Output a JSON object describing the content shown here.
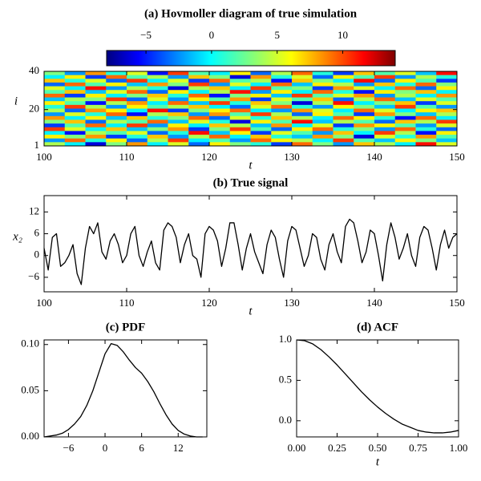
{
  "chart_data": [
    {
      "type": "heatmap",
      "title": "(a) Hovmoller diagram of true simulation",
      "xlabel": "t",
      "ylabel": "i",
      "xlim": [
        100,
        150
      ],
      "xticks": [
        100,
        110,
        120,
        130,
        140,
        150
      ],
      "ylim": [
        1,
        40
      ],
      "yticks": [
        1,
        20,
        40
      ],
      "colorbar": {
        "lim": [
          -8,
          14
        ],
        "ticks": [
          {
            "value": -5,
            "label": "−5"
          },
          0,
          5,
          10
        ]
      },
      "z": [
        [
          3,
          -2,
          8,
          1,
          5,
          -5,
          10,
          2,
          0,
          6,
          -3,
          4,
          9,
          1,
          -4,
          7,
          2,
          5,
          -1,
          11
        ],
        [
          0,
          6,
          -4,
          9,
          2,
          4,
          -2,
          7,
          3,
          -6,
          8,
          1,
          5,
          -3,
          6,
          2,
          10,
          -2,
          4,
          1
        ],
        [
          7,
          1,
          5,
          -3,
          10,
          0,
          5,
          -4,
          9,
          2,
          4,
          -5,
          7,
          3,
          0,
          11,
          -3,
          6,
          2,
          -4
        ],
        [
          -3,
          9,
          2,
          6,
          -1,
          8,
          3,
          10,
          -2,
          5,
          0,
          9,
          -1,
          6,
          4,
          -2,
          7,
          1,
          9,
          3
        ],
        [
          5,
          0,
          11,
          -2,
          4,
          1,
          -6,
          4,
          7,
          0,
          10,
          2,
          3,
          -4,
          8,
          5,
          0,
          9,
          -3,
          6
        ],
        [
          2,
          7,
          -1,
          5,
          9,
          -3,
          6,
          0,
          4,
          11,
          -2,
          6,
          0,
          9,
          1,
          -5,
          6,
          3,
          7,
          0
        ],
        [
          9,
          -4,
          6,
          0,
          3,
          7,
          1,
          9,
          -5,
          3,
          6,
          -1,
          10,
          2,
          5,
          8,
          -2,
          4,
          0,
          8
        ],
        [
          -1,
          4,
          3,
          10,
          -3,
          5,
          -2,
          6,
          2,
          8,
          -4,
          5,
          2,
          7,
          -3,
          4,
          9,
          -1,
          5,
          2
        ],
        [
          6,
          2,
          -5,
          4,
          8,
          0,
          9,
          -1,
          10,
          1,
          7,
          3,
          -6,
          4,
          11,
          0,
          3,
          7,
          -4,
          5
        ],
        [
          1,
          10,
          4,
          -2,
          6,
          2,
          4,
          7,
          0,
          -3,
          5,
          9,
          1,
          -2,
          6,
          3,
          -1,
          10,
          2,
          -2
        ],
        [
          4,
          -3,
          8,
          6,
          0,
          11,
          -4,
          3,
          6,
          9,
          0,
          -2,
          8,
          5,
          0,
          9,
          5,
          0,
          6,
          7
        ],
        [
          -2,
          5,
          1,
          9,
          -5,
          4,
          7,
          -2,
          8,
          2,
          10,
          4,
          -3,
          6,
          2,
          -4,
          8,
          3,
          -1,
          4
        ],
        [
          8,
          0,
          6,
          -1,
          7,
          1,
          3,
          9,
          -3,
          5,
          1,
          7,
          4,
          0,
          9,
          6,
          1,
          -5,
          9,
          0
        ],
        [
          3,
          7,
          -3,
          4,
          2,
          9,
          -1,
          5,
          1,
          -6,
          6,
          2,
          11,
          -1,
          4,
          2,
          -3,
          7,
          4,
          10
        ],
        [
          -4,
          2,
          9,
          0,
          10,
          -2,
          6,
          0,
          7,
          4,
          -1,
          8,
          0,
          5,
          -4,
          8,
          6,
          2,
          -2,
          5
        ],
        [
          10,
          5,
          0,
          7,
          -1,
          3,
          8,
          -4,
          3,
          10,
          2,
          -3,
          6,
          9,
          1,
          3,
          -2,
          9,
          1,
          -3
        ],
        [
          0,
          -5,
          4,
          2,
          5,
          -3,
          1,
          11,
          -1,
          6,
          -4,
          5,
          2,
          -2,
          7,
          0,
          10,
          4,
          -5,
          6
        ],
        [
          6,
          3,
          8,
          -4,
          1,
          7,
          -2,
          4,
          9,
          0,
          7,
          1,
          -1,
          8,
          3,
          -6,
          5,
          1,
          8,
          2
        ],
        [
          -2,
          9,
          1,
          6,
          -3,
          4,
          10,
          0,
          2,
          -2,
          9,
          6,
          4,
          0,
          10,
          2,
          -1,
          6,
          3,
          -1
        ],
        [
          4,
          0,
          -6,
          3,
          8,
          0,
          5,
          -3,
          6,
          3,
          1,
          -4,
          9,
          3,
          -2,
          7,
          4,
          0,
          11,
          5
        ]
      ]
    },
    {
      "type": "line",
      "title": "(b) True signal",
      "xlabel": "t",
      "ylabel": "x₂",
      "color": "#000000",
      "xlim": [
        100,
        150
      ],
      "xticks": [
        100,
        110,
        120,
        130,
        140,
        150
      ],
      "ylim": [
        -10,
        16.5
      ],
      "yticks": [
        {
          "value": -6,
          "label": "−6"
        },
        0,
        6,
        12
      ],
      "x": [
        100,
        100.5,
        101,
        101.5,
        102,
        102.5,
        103,
        103.5,
        104,
        104.5,
        105,
        105.5,
        106,
        106.5,
        107,
        107.5,
        108,
        108.5,
        109,
        109.5,
        110,
        110.5,
        111,
        111.5,
        112,
        112.5,
        113,
        113.5,
        114,
        114.5,
        115,
        115.5,
        116,
        116.5,
        117,
        117.5,
        118,
        118.5,
        119,
        119.5,
        120,
        120.5,
        121,
        121.5,
        122,
        122.5,
        123,
        123.5,
        124,
        124.5,
        125,
        125.5,
        126,
        126.5,
        127,
        127.5,
        128,
        128.5,
        129,
        129.5,
        130,
        130.5,
        131,
        131.5,
        132,
        132.5,
        133,
        133.5,
        134,
        134.5,
        135,
        135.5,
        136,
        136.5,
        137,
        137.5,
        138,
        138.5,
        139,
        139.5,
        140,
        140.5,
        141,
        141.5,
        142,
        142.5,
        143,
        143.5,
        144,
        144.5,
        145,
        145.5,
        146,
        146.5,
        147,
        147.5,
        148,
        148.5,
        149,
        149.5,
        150
      ],
      "values": [
        2,
        -4,
        5,
        6,
        -3,
        -2,
        0,
        3,
        -5,
        -8,
        2,
        8,
        6,
        9,
        1,
        -1,
        4,
        6,
        3,
        -2,
        0,
        6,
        8,
        0,
        -3,
        1,
        4,
        -2,
        -4,
        7,
        9,
        8,
        5,
        -2,
        3,
        6,
        0,
        -1,
        -6,
        6,
        8,
        7,
        4,
        -3,
        2,
        9,
        9,
        3,
        -4,
        2,
        6,
        1,
        -2,
        -5,
        3,
        7,
        5,
        -1,
        -6,
        4,
        8,
        7,
        2,
        -3,
        0,
        6,
        5,
        -1,
        -4,
        3,
        6,
        1,
        -2,
        8,
        10,
        9,
        4,
        -2,
        1,
        7,
        6,
        0,
        -7,
        3,
        9,
        5,
        -1,
        2,
        6,
        0,
        -3,
        5,
        8,
        7,
        2,
        -4,
        3,
        7,
        2,
        5,
        6
      ]
    },
    {
      "type": "line",
      "title": "(c) PDF",
      "color": "#000000",
      "xlim": [
        -10,
        16.7
      ],
      "xticks": [
        {
          "value": -6,
          "label": "−6"
        },
        0,
        6,
        12
      ],
      "ylim": [
        0,
        0.105
      ],
      "yticks": [
        {
          "value": 0,
          "label": "0.00"
        },
        0.05,
        {
          "value": 0.1,
          "label": "0.10"
        }
      ],
      "x": [
        -10,
        -9,
        -8,
        -7,
        -6,
        -5,
        -4,
        -3,
        -2,
        -1,
        0,
        1,
        2,
        3,
        4,
        5,
        6,
        7,
        8,
        9,
        10,
        11,
        12,
        13,
        14,
        15,
        16
      ],
      "values": [
        0,
        0.001,
        0.002,
        0.004,
        0.008,
        0.014,
        0.022,
        0.034,
        0.05,
        0.07,
        0.09,
        0.101,
        0.099,
        0.092,
        0.083,
        0.075,
        0.069,
        0.06,
        0.049,
        0.036,
        0.024,
        0.014,
        0.007,
        0.003,
        0.001,
        0,
        0
      ]
    },
    {
      "type": "line",
      "title": "(d) ACF",
      "xlabel": "t",
      "color": "#000000",
      "xlim": [
        0,
        1
      ],
      "xticks": [
        {
          "value": 0,
          "label": "0.00"
        },
        0.25,
        {
          "value": 0.5,
          "label": "0.50"
        },
        0.75,
        {
          "value": 1,
          "label": "1.00"
        }
      ],
      "ylim": [
        -0.2,
        1
      ],
      "yticks": [
        {
          "value": 0,
          "label": "0.0"
        },
        0.5,
        {
          "value": 1,
          "label": "1.0"
        }
      ],
      "x": [
        0,
        0.05,
        0.1,
        0.15,
        0.2,
        0.25,
        0.3,
        0.35,
        0.4,
        0.45,
        0.5,
        0.55,
        0.6,
        0.65,
        0.7,
        0.75,
        0.8,
        0.85,
        0.9,
        0.95,
        1
      ],
      "values": [
        1,
        0.99,
        0.95,
        0.88,
        0.79,
        0.69,
        0.58,
        0.47,
        0.36,
        0.26,
        0.17,
        0.09,
        0.02,
        -0.04,
        -0.08,
        -0.12,
        -0.14,
        -0.15,
        -0.15,
        -0.14,
        -0.12
      ]
    }
  ]
}
